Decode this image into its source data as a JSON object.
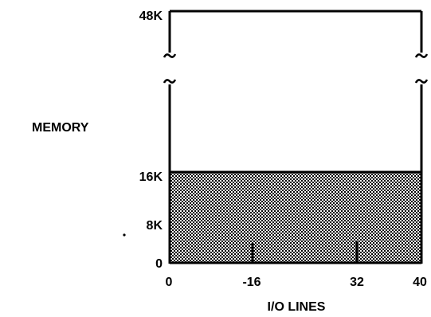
{
  "diagram": {
    "y_axis_label": "MEMORY",
    "x_axis_label": "I/O LINES",
    "y_ticks": [
      "48K",
      "16K",
      "8K",
      "0"
    ],
    "x_ticks": [
      "0",
      "-16",
      "32",
      "40"
    ],
    "shaded_region": {
      "memory_top": "16K",
      "io_lines_right": 40
    },
    "x_tick_marks_at": [
      16,
      32
    ],
    "axis_break": true,
    "fill_color": "#8a8a8a",
    "ink_color": "#000000"
  }
}
